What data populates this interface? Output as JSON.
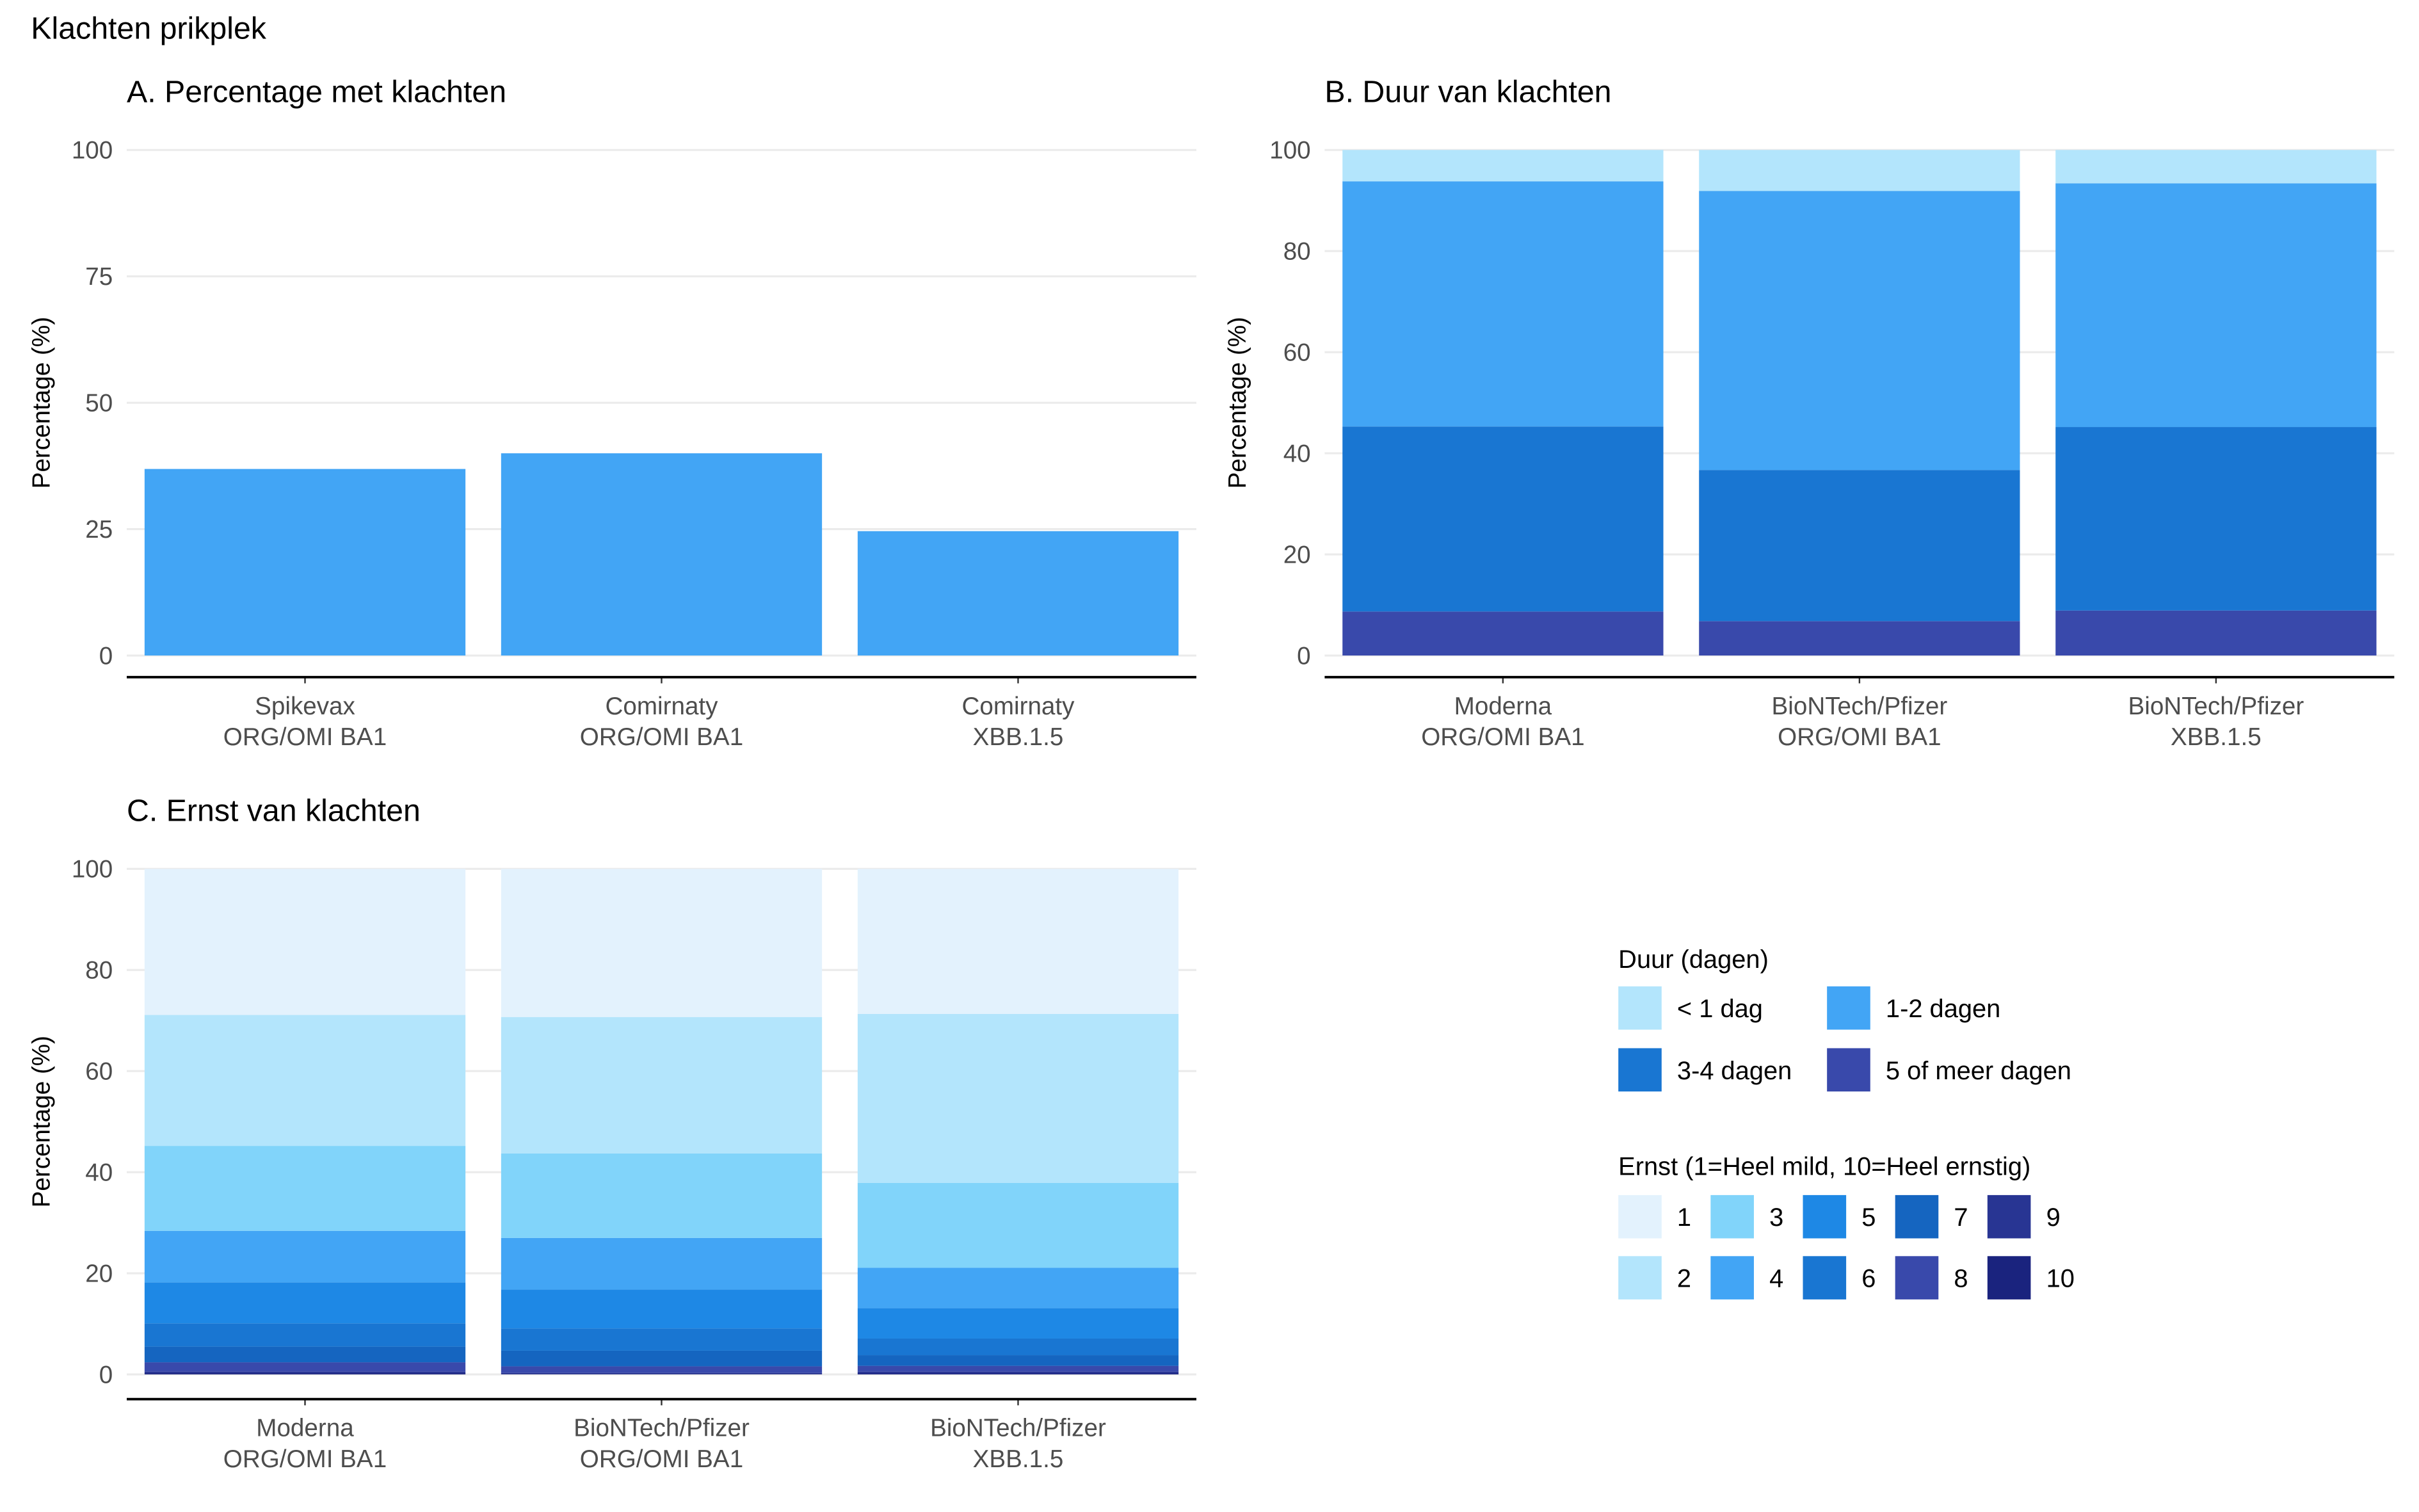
{
  "figure_title": "Klachten prikplek",
  "chart_data": [
    {
      "id": "A",
      "type": "bar",
      "title": "A. Percentage met klachten",
      "xlabel": "",
      "ylabel": "Percentage (%)",
      "ylim": [
        0,
        100
      ],
      "yticks": [
        0,
        25,
        50,
        75,
        100
      ],
      "categories": [
        [
          "Spikevax",
          "ORG/OMI BA1"
        ],
        [
          "Comirnaty",
          "ORG/OMI BA1"
        ],
        [
          "Comirnaty",
          "XBB.1.5"
        ]
      ],
      "values": [
        36.9,
        40.0,
        24.6
      ],
      "color": "#42A5F5",
      "grid": true
    },
    {
      "id": "B",
      "type": "bar",
      "stacked": true,
      "title": "B. Duur van klachten",
      "xlabel": "",
      "ylabel": "Percentage (%)",
      "ylim": [
        0,
        100
      ],
      "yticks": [
        0,
        20,
        40,
        60,
        80,
        100
      ],
      "categories": [
        [
          "Moderna",
          "ORG/OMI BA1"
        ],
        [
          "BioNTech/Pfizer",
          "ORG/OMI BA1"
        ],
        [
          "BioNTech/Pfizer",
          "XBB.1.5"
        ]
      ],
      "series": [
        {
          "name": "5 of meer dagen",
          "color": "#3949AB",
          "values": [
            8.7,
            6.8,
            8.9
          ]
        },
        {
          "name": "3-4 dagen",
          "color": "#1976D2",
          "values": [
            36.6,
            29.9,
            36.3
          ]
        },
        {
          "name": "1-2 dagen",
          "color": "#42A5F5",
          "values": [
            48.5,
            55.2,
            48.2
          ]
        },
        {
          "name": "< 1 dag",
          "color": "#B3E5FC",
          "values": [
            6.2,
            8.1,
            6.6
          ]
        }
      ],
      "grid": true
    },
    {
      "id": "C",
      "type": "bar",
      "stacked": true,
      "title": "C. Ernst van klachten",
      "xlabel": "",
      "ylabel": "Percentage (%)",
      "ylim": [
        0,
        100
      ],
      "yticks": [
        0,
        20,
        40,
        60,
        80,
        100
      ],
      "categories": [
        [
          "Moderna",
          "ORG/OMI BA1"
        ],
        [
          "BioNTech/Pfizer",
          "ORG/OMI BA1"
        ],
        [
          "BioNTech/Pfizer",
          "XBB.1.5"
        ]
      ],
      "series": [
        {
          "name": "10",
          "color": "#1A237E",
          "values": [
            0.25,
            0.1,
            0.2
          ]
        },
        {
          "name": "9",
          "color": "#283593",
          "values": [
            0.3,
            0.2,
            0.35
          ]
        },
        {
          "name": "8",
          "color": "#3949AB",
          "values": [
            1.85,
            1.3,
            1.15
          ]
        },
        {
          "name": "7",
          "color": "#1565C0",
          "values": [
            3.1,
            3.1,
            2.1
          ]
        },
        {
          "name": "6",
          "color": "#1976D2",
          "values": [
            4.6,
            4.4,
            3.3
          ]
        },
        {
          "name": "5",
          "color": "#1E88E5",
          "values": [
            8.1,
            7.7,
            6.0
          ]
        },
        {
          "name": "4",
          "color": "#42A5F5",
          "values": [
            10.2,
            10.2,
            8.0
          ]
        },
        {
          "name": "3",
          "color": "#81D4FA",
          "values": [
            16.8,
            16.7,
            16.8
          ]
        },
        {
          "name": "2",
          "color": "#B3E5FC",
          "values": [
            25.9,
            27.0,
            33.4
          ]
        },
        {
          "name": "1",
          "color": "#E3F2FD",
          "values": [
            28.9,
            29.3,
            28.7
          ]
        }
      ],
      "grid": true
    }
  ],
  "legends": {
    "duur": {
      "title": "Duur (dagen)",
      "items": [
        {
          "label": "< 1 dag",
          "color": "#B3E5FC"
        },
        {
          "label": "1-2 dagen",
          "color": "#42A5F5"
        },
        {
          "label": "3-4 dagen",
          "color": "#1976D2"
        },
        {
          "label": "5 of meer dagen",
          "color": "#3949AB"
        }
      ]
    },
    "ernst": {
      "title": "Ernst (1=Heel mild, 10=Heel ernstig)",
      "items": [
        {
          "label": "1",
          "color": "#E3F2FD"
        },
        {
          "label": "2",
          "color": "#B3E5FC"
        },
        {
          "label": "3",
          "color": "#81D4FA"
        },
        {
          "label": "4",
          "color": "#42A5F5"
        },
        {
          "label": "5",
          "color": "#1E88E5"
        },
        {
          "label": "6",
          "color": "#1976D2"
        },
        {
          "label": "7",
          "color": "#1565C0"
        },
        {
          "label": "8",
          "color": "#3949AB"
        },
        {
          "label": "9",
          "color": "#283593"
        },
        {
          "label": "10",
          "color": "#1A237E"
        }
      ]
    }
  }
}
